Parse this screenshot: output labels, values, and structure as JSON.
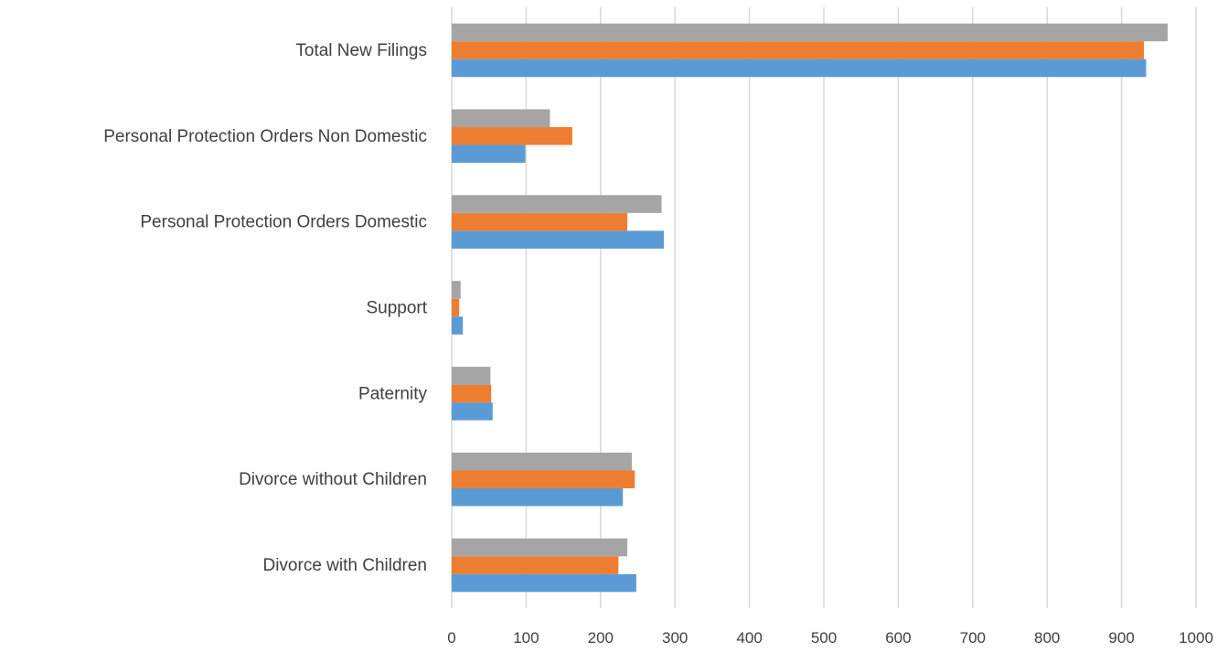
{
  "chart_data": {
    "type": "bar",
    "orientation": "horizontal",
    "title": "",
    "xlabel": "",
    "ylabel": "",
    "xlim": [
      0,
      1000
    ],
    "x_ticks": [
      0,
      100,
      200,
      300,
      400,
      500,
      600,
      700,
      800,
      900,
      1000
    ],
    "grid": "vertical",
    "legend": "none",
    "categories": [
      "Divorce with Children",
      "Divorce without Children",
      "Paternity",
      "Support",
      "Personal Protection Orders Domestic",
      "Personal Protection Orders Non Domestic",
      "Total New Filings"
    ],
    "series": [
      {
        "color": "#5b9bd5",
        "values": [
          248,
          230,
          55,
          15,
          285,
          99,
          933
        ]
      },
      {
        "color": "#ed7d31",
        "values": [
          224,
          246,
          53,
          10,
          236,
          162,
          930
        ]
      },
      {
        "color": "#a5a5a5",
        "values": [
          236,
          242,
          52,
          12,
          282,
          132,
          962
        ]
      }
    ]
  }
}
